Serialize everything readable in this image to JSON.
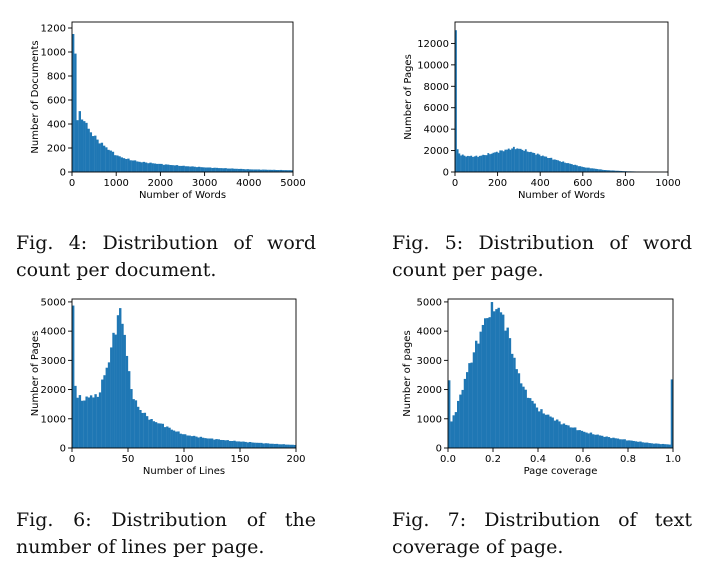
{
  "bar_color": "#1f77b4",
  "figures": [
    {
      "caption": "Fig. 4: Distribution of word count per document."
    },
    {
      "caption": "Fig. 5: Distribution of word count per page."
    },
    {
      "caption": "Fig. 6: Distribution of the number of lines per page."
    },
    {
      "caption": "Fig. 7: Distribution of text coverage of page."
    }
  ],
  "chart_data": [
    {
      "type": "bar",
      "xlabel": "Number of Words",
      "ylabel": "Number of Documents",
      "xlim": [
        0,
        5000
      ],
      "ylim": [
        0,
        1250
      ],
      "x_ticks": [
        0,
        1000,
        2000,
        3000,
        4000,
        5000
      ],
      "y_ticks": [
        0,
        200,
        400,
        600,
        800,
        1000,
        1200
      ],
      "bin_width": 50,
      "anchors": [
        [
          0,
          1150
        ],
        [
          50,
          1000
        ],
        [
          100,
          440
        ],
        [
          150,
          480
        ],
        [
          250,
          430
        ],
        [
          400,
          330
        ],
        [
          600,
          250
        ],
        [
          800,
          190
        ],
        [
          1000,
          135
        ],
        [
          1200,
          110
        ],
        [
          1500,
          85
        ],
        [
          2000,
          65
        ],
        [
          2500,
          50
        ],
        [
          3000,
          38
        ],
        [
          3500,
          30
        ],
        [
          4000,
          22
        ],
        [
          4500,
          18
        ],
        [
          5000,
          14
        ]
      ]
    },
    {
      "type": "bar",
      "xlabel": "Number of Words",
      "ylabel": "Number of Pages",
      "xlim": [
        0,
        1000
      ],
      "ylim": [
        0,
        14000
      ],
      "x_ticks": [
        0,
        200,
        400,
        600,
        800,
        1000
      ],
      "y_ticks": [
        0,
        2000,
        4000,
        6000,
        8000,
        10000,
        12000
      ],
      "bin_width": 8,
      "anchors": [
        [
          0,
          13200
        ],
        [
          8,
          2100
        ],
        [
          16,
          1700
        ],
        [
          40,
          1500
        ],
        [
          100,
          1450
        ],
        [
          160,
          1700
        ],
        [
          220,
          2000
        ],
        [
          275,
          2250
        ],
        [
          320,
          2050
        ],
        [
          400,
          1550
        ],
        [
          500,
          950
        ],
        [
          600,
          450
        ],
        [
          700,
          180
        ],
        [
          800,
          70
        ],
        [
          900,
          25
        ],
        [
          1000,
          10
        ]
      ]
    },
    {
      "type": "bar",
      "xlabel": "Number of Lines",
      "ylabel": "Number of Pages",
      "xlim": [
        0,
        200
      ],
      "ylim": [
        0,
        5100
      ],
      "x_ticks": [
        0,
        50,
        100,
        150,
        200
      ],
      "y_ticks": [
        0,
        1000,
        2000,
        3000,
        4000,
        5000
      ],
      "bin_width": 2,
      "anchors": [
        [
          0,
          4900
        ],
        [
          2,
          2150
        ],
        [
          4,
          1750
        ],
        [
          10,
          1650
        ],
        [
          16,
          1800
        ],
        [
          22,
          1750
        ],
        [
          28,
          2500
        ],
        [
          32,
          3000
        ],
        [
          36,
          3800
        ],
        [
          40,
          4450
        ],
        [
          42,
          4700
        ],
        [
          46,
          3900
        ],
        [
          50,
          2500
        ],
        [
          54,
          1700
        ],
        [
          60,
          1300
        ],
        [
          70,
          950
        ],
        [
          80,
          800
        ],
        [
          90,
          600
        ],
        [
          100,
          450
        ],
        [
          120,
          330
        ],
        [
          140,
          250
        ],
        [
          160,
          190
        ],
        [
          180,
          140
        ],
        [
          200,
          100
        ]
      ]
    },
    {
      "type": "bar",
      "xlabel": "Page coverage",
      "ylabel": "Number of pages",
      "xlim": [
        0,
        1
      ],
      "ylim": [
        0,
        5100
      ],
      "x_ticks": [
        0.0,
        0.2,
        0.4,
        0.6,
        0.8,
        1.0
      ],
      "y_ticks": [
        0,
        1000,
        2000,
        3000,
        4000,
        5000
      ],
      "bin_width": 0.01,
      "anchors": [
        [
          0,
          2300
        ],
        [
          0.01,
          900
        ],
        [
          0.03,
          1300
        ],
        [
          0.05,
          1800
        ],
        [
          0.08,
          2600
        ],
        [
          0.12,
          3500
        ],
        [
          0.15,
          4200
        ],
        [
          0.18,
          4650
        ],
        [
          0.21,
          4850
        ],
        [
          0.24,
          4500
        ],
        [
          0.27,
          3700
        ],
        [
          0.3,
          2700
        ],
        [
          0.34,
          1900
        ],
        [
          0.4,
          1300
        ],
        [
          0.5,
          850
        ],
        [
          0.6,
          550
        ],
        [
          0.7,
          380
        ],
        [
          0.8,
          260
        ],
        [
          0.9,
          160
        ],
        [
          0.98,
          120
        ],
        [
          0.99,
          2350
        ]
      ]
    }
  ]
}
